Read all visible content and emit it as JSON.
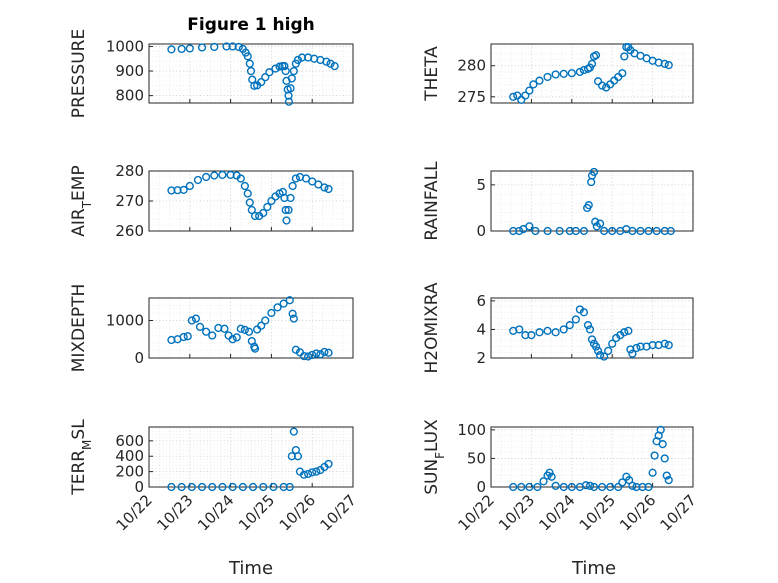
{
  "figure": {
    "title": "Figure 1 high",
    "xlabel": "Time",
    "date_ticks": [
      "10/22",
      "10/23",
      "10/24",
      "10/25",
      "10/26",
      "10/27"
    ],
    "marker_color": "#0072bd"
  },
  "chart_data": [
    {
      "type": "scatter",
      "ylabel": "PRESSURE",
      "xlim": [
        "10/22",
        "10/27"
      ],
      "ylim": [
        770,
        1010
      ],
      "yticks": [
        800,
        900,
        1000
      ],
      "points": [
        [
          22.55,
          988
        ],
        [
          22.8,
          990
        ],
        [
          23.0,
          992
        ],
        [
          23.3,
          996
        ],
        [
          23.6,
          998
        ],
        [
          23.9,
          1000
        ],
        [
          24.05,
          1000
        ],
        [
          24.2,
          998
        ],
        [
          24.3,
          990
        ],
        [
          24.37,
          975
        ],
        [
          24.42,
          960
        ],
        [
          24.47,
          930
        ],
        [
          24.5,
          900
        ],
        [
          24.53,
          865
        ],
        [
          24.58,
          840
        ],
        [
          24.65,
          842
        ],
        [
          24.75,
          855
        ],
        [
          24.85,
          875
        ],
        [
          24.95,
          895
        ],
        [
          25.1,
          910
        ],
        [
          25.2,
          918
        ],
        [
          25.27,
          920
        ],
        [
          25.32,
          920
        ],
        [
          25.35,
          900
        ],
        [
          25.37,
          860
        ],
        [
          25.4,
          825
        ],
        [
          25.42,
          800
        ],
        [
          25.43,
          775
        ],
        [
          25.47,
          830
        ],
        [
          25.5,
          870
        ],
        [
          25.55,
          900
        ],
        [
          25.6,
          930
        ],
        [
          25.65,
          945
        ],
        [
          25.75,
          955
        ],
        [
          25.9,
          955
        ],
        [
          26.05,
          950
        ],
        [
          26.2,
          945
        ],
        [
          26.35,
          938
        ],
        [
          26.45,
          930
        ],
        [
          26.55,
          920
        ]
      ]
    },
    {
      "type": "scatter",
      "ylabel": "THETA",
      "xlim": [
        "10/22",
        "10/27"
      ],
      "ylim": [
        274,
        283.5
      ],
      "yticks": [
        275,
        280
      ],
      "points": [
        [
          22.55,
          275
        ],
        [
          22.65,
          275.2
        ],
        [
          22.75,
          274.5
        ],
        [
          22.85,
          275.2
        ],
        [
          22.95,
          276
        ],
        [
          23.05,
          277
        ],
        [
          23.2,
          277.6
        ],
        [
          23.4,
          278.2
        ],
        [
          23.6,
          278.6
        ],
        [
          23.8,
          278.7
        ],
        [
          24.0,
          278.8
        ],
        [
          24.2,
          279
        ],
        [
          24.3,
          279.3
        ],
        [
          24.4,
          279.5
        ],
        [
          24.45,
          279.7
        ],
        [
          24.5,
          280.3
        ],
        [
          24.55,
          281.5
        ],
        [
          24.6,
          281.7
        ],
        [
          24.65,
          277.5
        ],
        [
          24.75,
          276.8
        ],
        [
          24.85,
          276.5
        ],
        [
          24.95,
          277
        ],
        [
          25.05,
          277.6
        ],
        [
          25.15,
          278.2
        ],
        [
          25.25,
          278.8
        ],
        [
          25.3,
          281.5
        ],
        [
          25.35,
          283
        ],
        [
          25.4,
          283
        ],
        [
          25.45,
          282.5
        ],
        [
          25.55,
          282
        ],
        [
          25.7,
          281.6
        ],
        [
          25.85,
          281.2
        ],
        [
          26.0,
          280.8
        ],
        [
          26.15,
          280.5
        ],
        [
          26.3,
          280.3
        ],
        [
          26.4,
          280.1
        ]
      ]
    },
    {
      "type": "scatter",
      "ylabel": "AIR_TEMP",
      "xlim": [
        "10/22",
        "10/27"
      ],
      "ylim": [
        260,
        280
      ],
      "yticks": [
        260,
        270,
        280
      ],
      "points": [
        [
          22.55,
          273.5
        ],
        [
          22.7,
          273.6
        ],
        [
          22.85,
          273.7
        ],
        [
          23.0,
          275
        ],
        [
          23.2,
          277
        ],
        [
          23.4,
          278
        ],
        [
          23.6,
          278.5
        ],
        [
          23.8,
          278.7
        ],
        [
          24.0,
          278.7
        ],
        [
          24.15,
          278.5
        ],
        [
          24.25,
          277.5
        ],
        [
          24.35,
          275
        ],
        [
          24.42,
          272.5
        ],
        [
          24.47,
          269.5
        ],
        [
          24.52,
          267
        ],
        [
          24.6,
          265
        ],
        [
          24.7,
          265
        ],
        [
          24.8,
          266
        ],
        [
          24.9,
          268
        ],
        [
          25.0,
          270
        ],
        [
          25.1,
          271.5
        ],
        [
          25.2,
          272.5
        ],
        [
          25.28,
          273
        ],
        [
          25.32,
          271
        ],
        [
          25.35,
          267
        ],
        [
          25.37,
          263.5
        ],
        [
          25.42,
          267
        ],
        [
          25.47,
          271
        ],
        [
          25.52,
          275
        ],
        [
          25.6,
          277.5
        ],
        [
          25.7,
          278
        ],
        [
          25.85,
          277.5
        ],
        [
          26.0,
          276.5
        ],
        [
          26.15,
          275.5
        ],
        [
          26.3,
          274.5
        ],
        [
          26.4,
          274
        ]
      ]
    },
    {
      "type": "scatter",
      "ylabel": "RAINFALL",
      "xlim": [
        "10/22",
        "10/27"
      ],
      "ylim": [
        0,
        6.5
      ],
      "yticks": [
        0,
        5
      ],
      "points": [
        [
          22.55,
          0
        ],
        [
          22.7,
          0
        ],
        [
          22.8,
          0.2
        ],
        [
          22.95,
          0.5
        ],
        [
          23.1,
          0
        ],
        [
          23.4,
          0
        ],
        [
          23.7,
          0
        ],
        [
          23.95,
          0
        ],
        [
          24.1,
          0
        ],
        [
          24.3,
          0
        ],
        [
          24.38,
          2.5
        ],
        [
          24.42,
          2.8
        ],
        [
          24.48,
          5.3
        ],
        [
          24.5,
          6
        ],
        [
          24.55,
          6.4
        ],
        [
          24.58,
          1
        ],
        [
          24.62,
          0.5
        ],
        [
          24.7,
          0.8
        ],
        [
          24.8,
          0
        ],
        [
          25.0,
          0
        ],
        [
          25.2,
          0
        ],
        [
          25.35,
          0.2
        ],
        [
          25.5,
          0
        ],
        [
          25.7,
          0
        ],
        [
          25.9,
          0
        ],
        [
          26.1,
          0
        ],
        [
          26.3,
          0
        ],
        [
          26.45,
          0
        ]
      ]
    },
    {
      "type": "scatter",
      "ylabel": "MIXDEPTH",
      "xlim": [
        "10/22",
        "10/27"
      ],
      "ylim": [
        0,
        1600
      ],
      "yticks": [
        0,
        1000
      ],
      "points": [
        [
          22.55,
          480
        ],
        [
          22.7,
          500
        ],
        [
          22.85,
          560
        ],
        [
          22.95,
          580
        ],
        [
          23.05,
          1000
        ],
        [
          23.15,
          1050
        ],
        [
          23.25,
          830
        ],
        [
          23.4,
          700
        ],
        [
          23.55,
          600
        ],
        [
          23.7,
          800
        ],
        [
          23.85,
          780
        ],
        [
          23.95,
          600
        ],
        [
          24.05,
          500
        ],
        [
          24.15,
          550
        ],
        [
          24.25,
          780
        ],
        [
          24.35,
          750
        ],
        [
          24.45,
          700
        ],
        [
          24.52,
          450
        ],
        [
          24.58,
          300
        ],
        [
          24.6,
          250
        ],
        [
          24.65,
          760
        ],
        [
          24.75,
          860
        ],
        [
          24.85,
          1000
        ],
        [
          25.0,
          1200
        ],
        [
          25.15,
          1350
        ],
        [
          25.3,
          1450
        ],
        [
          25.45,
          1540
        ],
        [
          25.52,
          1180
        ],
        [
          25.55,
          1050
        ],
        [
          25.6,
          220
        ],
        [
          25.7,
          150
        ],
        [
          25.8,
          50
        ],
        [
          25.9,
          40
        ],
        [
          26.0,
          80
        ],
        [
          26.1,
          120
        ],
        [
          26.2,
          100
        ],
        [
          26.3,
          160
        ],
        [
          26.4,
          140
        ]
      ]
    },
    {
      "type": "scatter",
      "ylabel": "H2OMIXRA",
      "xlim": [
        "10/22",
        "10/27"
      ],
      "ylim": [
        2,
        6.2
      ],
      "yticks": [
        2,
        4,
        6
      ],
      "points": [
        [
          22.55,
          3.9
        ],
        [
          22.7,
          4.0
        ],
        [
          22.85,
          3.6
        ],
        [
          23.0,
          3.6
        ],
        [
          23.2,
          3.8
        ],
        [
          23.4,
          3.9
        ],
        [
          23.6,
          3.8
        ],
        [
          23.8,
          4.0
        ],
        [
          23.95,
          4.3
        ],
        [
          24.1,
          4.7
        ],
        [
          24.2,
          5.4
        ],
        [
          24.3,
          5.2
        ],
        [
          24.4,
          4.3
        ],
        [
          24.45,
          4.0
        ],
        [
          24.5,
          3.3
        ],
        [
          24.55,
          3.0
        ],
        [
          24.6,
          2.8
        ],
        [
          24.65,
          2.5
        ],
        [
          24.7,
          2.2
        ],
        [
          24.8,
          2.1
        ],
        [
          24.9,
          2.5
        ],
        [
          25.0,
          3.0
        ],
        [
          25.1,
          3.4
        ],
        [
          25.2,
          3.6
        ],
        [
          25.3,
          3.8
        ],
        [
          25.4,
          3.9
        ],
        [
          25.45,
          2.6
        ],
        [
          25.5,
          2.3
        ],
        [
          25.6,
          2.7
        ],
        [
          25.7,
          2.8
        ],
        [
          25.85,
          2.8
        ],
        [
          26.0,
          2.9
        ],
        [
          26.15,
          2.9
        ],
        [
          26.3,
          3.0
        ],
        [
          26.4,
          2.9
        ]
      ]
    },
    {
      "type": "scatter",
      "ylabel": "TERR_MSL",
      "xlim": [
        "10/22",
        "10/27"
      ],
      "ylim": [
        0,
        780
      ],
      "yticks": [
        0,
        200,
        400,
        600
      ],
      "points": [
        [
          22.55,
          0
        ],
        [
          22.8,
          0
        ],
        [
          23.05,
          0
        ],
        [
          23.3,
          0
        ],
        [
          23.55,
          0
        ],
        [
          23.8,
          0
        ],
        [
          24.05,
          0
        ],
        [
          24.3,
          0
        ],
        [
          24.55,
          0
        ],
        [
          24.8,
          0
        ],
        [
          25.05,
          0
        ],
        [
          25.3,
          0
        ],
        [
          25.45,
          0
        ],
        [
          25.5,
          400
        ],
        [
          25.55,
          720
        ],
        [
          25.6,
          480
        ],
        [
          25.65,
          400
        ],
        [
          25.7,
          200
        ],
        [
          25.8,
          160
        ],
        [
          25.9,
          170
        ],
        [
          26.0,
          190
        ],
        [
          26.1,
          200
        ],
        [
          26.2,
          220
        ],
        [
          26.3,
          260
        ],
        [
          26.4,
          300
        ]
      ]
    },
    {
      "type": "scatter",
      "ylabel": "SUN_FLUX",
      "xlim": [
        "10/22",
        "10/27"
      ],
      "ylim": [
        0,
        105
      ],
      "yticks": [
        0,
        50,
        100
      ],
      "points": [
        [
          22.55,
          0
        ],
        [
          22.75,
          0
        ],
        [
          22.95,
          0
        ],
        [
          23.15,
          0
        ],
        [
          23.3,
          10
        ],
        [
          23.4,
          20
        ],
        [
          23.45,
          25
        ],
        [
          23.5,
          18
        ],
        [
          23.6,
          2
        ],
        [
          23.8,
          0
        ],
        [
          24.0,
          0
        ],
        [
          24.2,
          0
        ],
        [
          24.35,
          3
        ],
        [
          24.45,
          2
        ],
        [
          24.55,
          0
        ],
        [
          24.75,
          0
        ],
        [
          24.95,
          0
        ],
        [
          25.15,
          0
        ],
        [
          25.25,
          8
        ],
        [
          25.35,
          18
        ],
        [
          25.42,
          12
        ],
        [
          25.5,
          2
        ],
        [
          25.6,
          0
        ],
        [
          25.75,
          0
        ],
        [
          25.9,
          0
        ],
        [
          26.0,
          25
        ],
        [
          26.05,
          55
        ],
        [
          26.1,
          80
        ],
        [
          26.15,
          90
        ],
        [
          26.2,
          100
        ],
        [
          26.25,
          75
        ],
        [
          26.3,
          50
        ],
        [
          26.35,
          20
        ],
        [
          26.4,
          12
        ]
      ]
    }
  ]
}
